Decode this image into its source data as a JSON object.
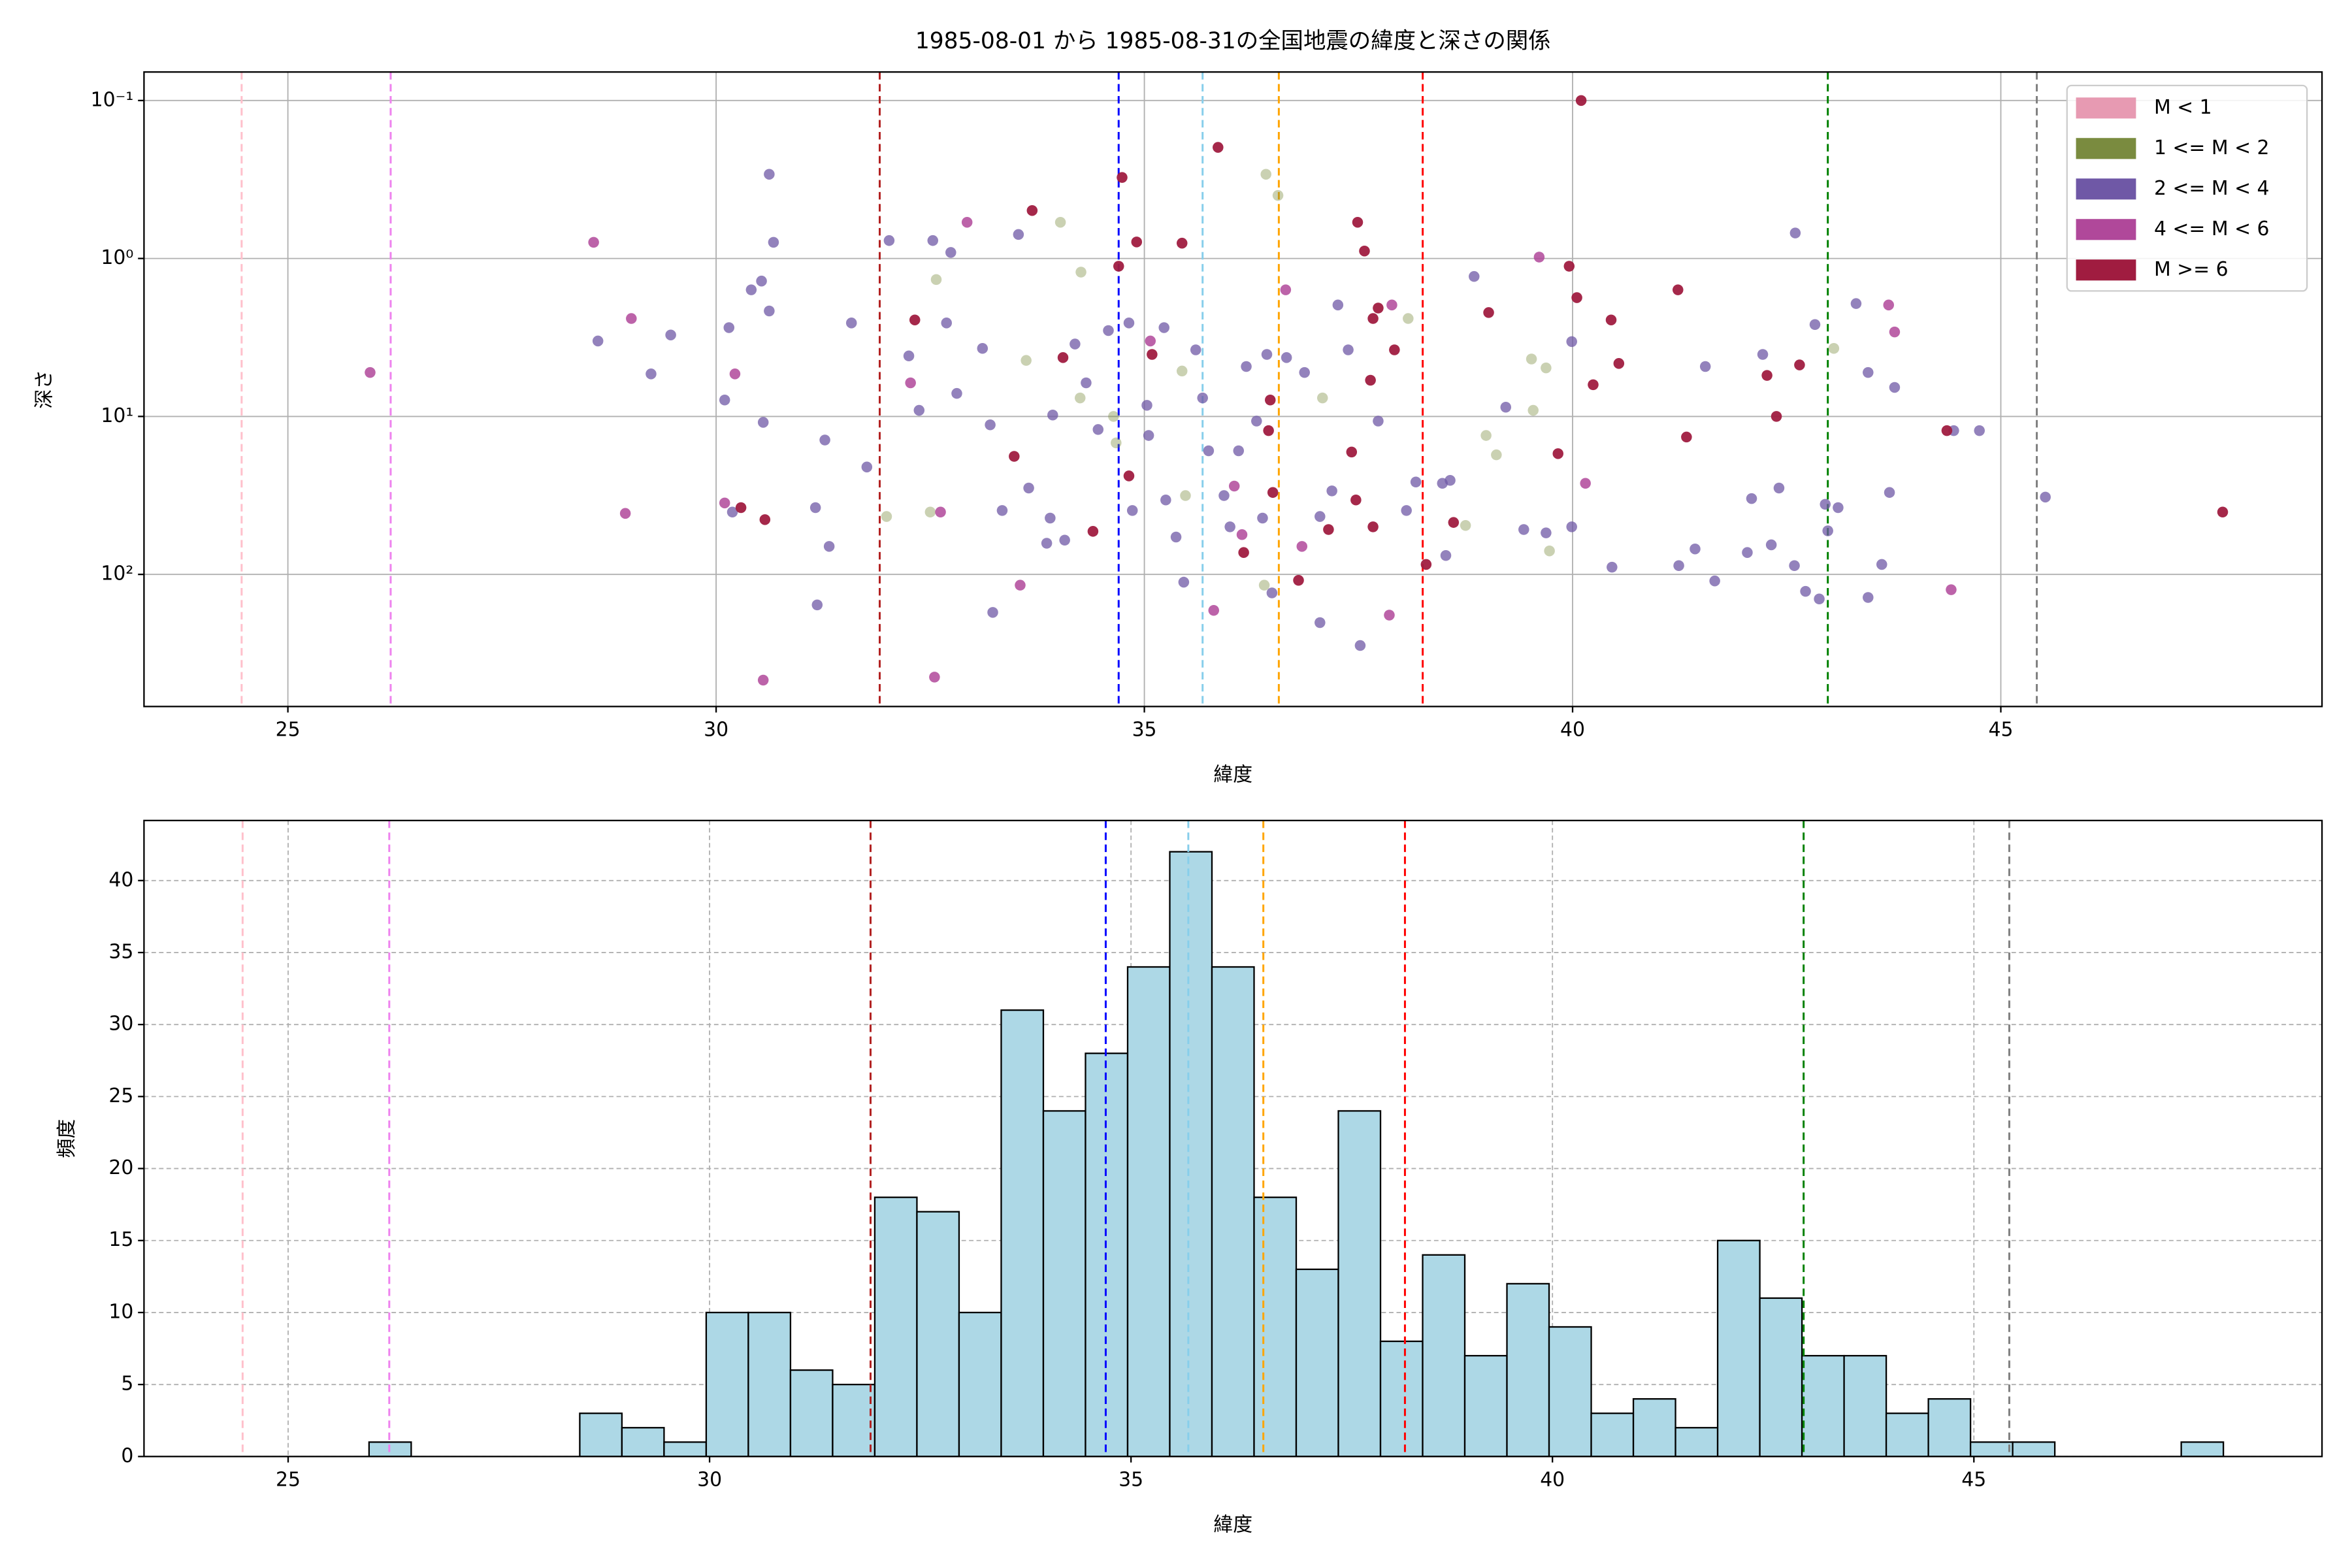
{
  "chart_data": [
    {
      "type": "scatter",
      "title": "1985-08-01 から 1985-08-31の全国地震の緯度と深さの関係",
      "x_label": "緯度",
      "y_label": "深さ",
      "xlim": [
        23.32,
        48.75
      ],
      "xticks": [
        25,
        30,
        35,
        40,
        45
      ],
      "ylim": [
        0.066,
        686
      ],
      "y_scale": "log",
      "y_inverted": true,
      "yticks": [
        {
          "value": 0.1,
          "label": "10⁻¹"
        },
        {
          "value": 1,
          "label": "10⁰"
        },
        {
          "value": 10,
          "label": "10¹"
        },
        {
          "value": 100,
          "label": "10²"
        }
      ],
      "grid": true,
      "legend": "upper right",
      "vlines": [
        {
          "x": 24.46,
          "color": "pink"
        },
        {
          "x": 26.2,
          "color": "violet"
        },
        {
          "x": 31.91,
          "color": "#b22222"
        },
        {
          "x": 34.7,
          "color": "blue"
        },
        {
          "x": 35.68,
          "color": "skyblue"
        },
        {
          "x": 36.57,
          "color": "orange"
        },
        {
          "x": 38.25,
          "color": "red"
        },
        {
          "x": 42.98,
          "color": "green"
        },
        {
          "x": 45.42,
          "color": "gray"
        }
      ],
      "series": [
        {
          "name": "M < 1",
          "color": "#e79ab2",
          "alpha": 0.8,
          "x": [],
          "values": []
        },
        {
          "name": "1 <= M < 2",
          "color": "#7a8b3f",
          "alpha": 0.4,
          "x": [
            34.02,
            32.57,
            34.26,
            36.42,
            36.56,
            38.08,
            39.52,
            39.69,
            39.54,
            38.99,
            39.11,
            37.08,
            35.44,
            33.62,
            34.25,
            34.64,
            32.5,
            31.99,
            34.67,
            35.48,
            36.4,
            43.05,
            38.75,
            39.73
          ],
          "values": [
            0.59,
            1.36,
            1.22,
            0.293,
            0.399,
            2.4,
            4.33,
            4.93,
            9.15,
            13.2,
            17.5,
            7.64,
            5.16,
            4.42,
            7.64,
            10,
            40.3,
            43,
            14.7,
            31.7,
            117,
            3.71,
            49,
            71
          ]
        },
        {
          "name": "2 <= M < 4",
          "color": "#6f58a6",
          "alpha": 0.75,
          "x": [
            30.62,
            28.62,
            29.24,
            29.47,
            30.1,
            30.15,
            30.19,
            30.41,
            30.53,
            30.62,
            30.67,
            30.55,
            31.16,
            31.27,
            31.32,
            31.18,
            31.76,
            31.58,
            32.02,
            32.25,
            32.37,
            32.53,
            32.74,
            32.69,
            32.81,
            33.11,
            33.23,
            33.2,
            33.34,
            33.53,
            33.65,
            33.86,
            33.93,
            34.07,
            34.19,
            34.32,
            34.46,
            34.58,
            34.82,
            34.86,
            35.05,
            35.25,
            35.23,
            35.37,
            35.46,
            35.6,
            35.68,
            35.75,
            35.93,
            36.0,
            36.1,
            36.19,
            36.31,
            36.43,
            36.38,
            36.49,
            36.66,
            36.87,
            37.05,
            37.19,
            37.05,
            37.26,
            37.38,
            37.52,
            37.73,
            38.06,
            38.17,
            38.48,
            38.52,
            38.85,
            39.22,
            39.43,
            39.69,
            39.99,
            40.46,
            39.99,
            41.24,
            41.43,
            41.55,
            41.66,
            42.04,
            42.09,
            42.22,
            42.32,
            42.41,
            42.6,
            42.59,
            42.72,
            42.83,
            42.88,
            42.95,
            42.98,
            43.31,
            43.45,
            43.45,
            43.61,
            43.7,
            43.76,
            44.45,
            44.75,
            45.52,
            43.1,
            38.57,
            35.03,
            33.9
          ],
          "values": [
            0.293,
            3.33,
            5.38,
            3.05,
            7.87,
            2.74,
            40.3,
            1.58,
            1.39,
            2.15,
            0.79,
            10.9,
            37.8,
            14.1,
            66.5,
            156,
            20.9,
            2.56,
            0.77,
            4.14,
            9.15,
            0.77,
            0.916,
            2.56,
            7.15,
            3.71,
            174,
            11.3,
            39.4,
            0.705,
            28.4,
            63.5,
            9.8,
            60.7,
            3.48,
            6.13,
            12.1,
            2.86,
            2.56,
            39.4,
            13.2,
            33.8,
            2.74,
            58,
            112,
            3.79,
            7.64,
            16.5,
            31.7,
            50,
            16.5,
            4.83,
            10.7,
            4.05,
            44,
            131,
            4.24,
            5.27,
            43,
            29.6,
            202,
            1.97,
            3.79,
            282,
            10.7,
            39.4,
            26,
            26.5,
            75.9,
            1.3,
            8.74,
            52,
            54.6,
            50,
            90,
            3.36,
            88,
            69,
            4.83,
            110,
            72.7,
            33.1,
            4.05,
            65,
            28.4,
            0.69,
            88,
            128,
            2.62,
            143,
            36,
            53,
            1.93,
            5.27,
            140,
            86.5,
            30.3,
            6.55,
            12.3,
            12.3,
            32.4,
            37.8,
            25.4,
            8.5,
            44
          ]
        },
        {
          "name": "4 <= M < 6",
          "color": "#b0489a",
          "alpha": 0.85,
          "x": [
            25.96,
            28.57,
            29.01,
            28.94,
            30.22,
            30.1,
            32.93,
            32.27,
            32.62,
            32.55,
            30.55,
            33.55,
            35.81,
            36.14,
            36.84,
            37.86,
            39.61,
            40.15,
            43.69,
            43.76,
            44.42,
            36.05,
            36.65,
            37.89,
            35.07
          ],
          "values": [
            5.27,
            0.79,
            2.4,
            41.1,
            5.38,
            35.3,
            0.59,
            6.13,
            40.3,
            447,
            467,
            117,
            169,
            56,
            66.5,
            181,
            0.98,
            26.5,
            1.97,
            2.92,
            125,
            27.6,
            1.58,
            1.97,
            3.33
          ]
        },
        {
          "name": "M >= 6",
          "color": "#a01c40",
          "alpha": 0.95,
          "x": [
            40.1,
            35.86,
            33.69,
            34.74,
            37.49,
            37.57,
            34.91,
            34.7,
            39.96,
            40.05,
            41.23,
            37.73,
            37.67,
            39.02,
            40.45,
            32.32,
            35.09,
            37.92,
            34.05,
            40.54,
            42.27,
            42.65,
            40.24,
            37.64,
            36.47,
            42.38,
            36.45,
            41.33,
            37.42,
            33.48,
            39.83,
            34.82,
            36.5,
            37.47,
            30.29,
            30.57,
            38.61,
            34.4,
            37.67,
            37.15,
            36.16,
            38.29,
            36.8,
            47.59,
            44.37,
            35.44
          ],
          "values": [
            0.1,
            0.198,
            0.497,
            0.307,
            0.59,
            0.897,
            0.786,
            1.12,
            1.12,
            1.77,
            1.58,
            2.06,
            2.4,
            2.2,
            2.45,
            2.45,
            4.05,
            3.79,
            4.24,
            4.62,
            5.5,
            4.72,
            6.3,
            5.9,
            7.87,
            10,
            12.3,
            13.5,
            16.8,
            17.9,
            17.2,
            23.8,
            30.3,
            33.8,
            37.8,
            45,
            46.9,
            53.4,
            50,
            52,
            72.7,
            86.5,
            109,
            40.3,
            12.3,
            0.8
          ]
        }
      ]
    },
    {
      "type": "histogram",
      "x_label": "緯度",
      "y_label": "頻度",
      "xlim": [
        23.29,
        49.13
      ],
      "xticks": [
        25,
        30,
        35,
        40,
        45
      ],
      "ylim": [
        0,
        44.17
      ],
      "yticks": [
        0,
        5,
        10,
        15,
        20,
        25,
        30,
        35,
        40
      ],
      "grid": true,
      "color": "lightblue",
      "edgecolor": "black",
      "vlines": [
        {
          "x": 24.46,
          "color": "pink"
        },
        {
          "x": 26.2,
          "color": "violet"
        },
        {
          "x": 31.91,
          "color": "#b22222"
        },
        {
          "x": 34.7,
          "color": "blue"
        },
        {
          "x": 35.68,
          "color": "skyblue"
        },
        {
          "x": 36.57,
          "color": "orange"
        },
        {
          "x": 38.25,
          "color": "red"
        },
        {
          "x": 42.98,
          "color": "green"
        },
        {
          "x": 45.42,
          "color": "gray"
        }
      ],
      "bins": [
        25.96,
        26.46,
        26.96,
        27.46,
        27.96,
        28.46,
        28.96,
        29.46,
        29.96,
        30.46,
        30.96,
        31.46,
        31.96,
        32.46,
        32.96,
        33.46,
        33.96,
        34.46,
        34.96,
        35.46,
        35.96,
        36.46,
        36.96,
        37.46,
        37.96,
        38.46,
        38.96,
        39.46,
        39.96,
        40.46,
        40.96,
        41.46,
        41.96,
        42.46,
        42.96,
        43.46,
        43.96,
        44.46,
        44.96,
        45.46,
        45.96,
        46.46,
        46.96,
        47.46,
        47.96
      ],
      "values": [
        1,
        0,
        0,
        0,
        0,
        3,
        2,
        1,
        10,
        10,
        6,
        5,
        18,
        17,
        10,
        31,
        24,
        28,
        34,
        42,
        34,
        18,
        13,
        24,
        8,
        14,
        7,
        12,
        9,
        3,
        4,
        2,
        15,
        11,
        7,
        7,
        3,
        4,
        1,
        1,
        0,
        0,
        0,
        1
      ]
    }
  ]
}
